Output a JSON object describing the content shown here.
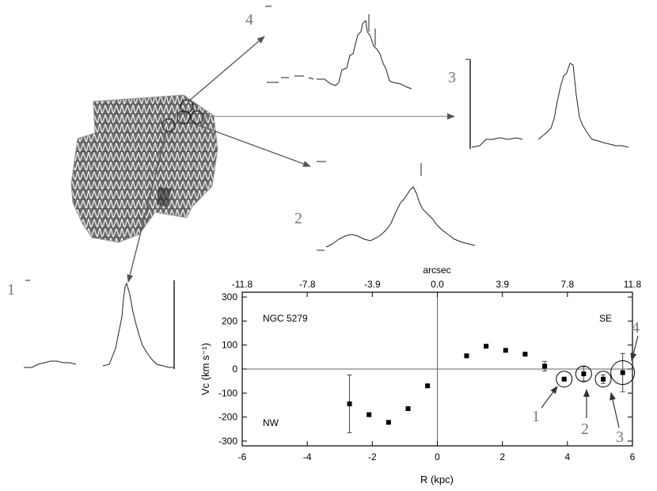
{
  "colors": {
    "background": "#ffffff",
    "ink": "#000000",
    "arrow": "#555555",
    "map_dark": "#3a3a3a",
    "map_light": "#c8c8c8",
    "spectrum_gray": "#888888"
  },
  "figure": {
    "spectra_labels": [
      "1",
      "2",
      "3",
      "4"
    ]
  },
  "chart_data": {
    "type": "scatter",
    "title": "",
    "xlabel": "R (kpc)",
    "ylabel": "Vc (km s⁻¹)",
    "top_axis_label": "arcsec",
    "top_ticks": [
      "-11.8",
      "-7.8",
      "-3.9",
      "0.0",
      "3.9",
      "7.8",
      "11.8"
    ],
    "x_ticks": [
      "-6",
      "-4",
      "-2",
      "0",
      "2",
      "4",
      "6"
    ],
    "y_ticks": [
      "300",
      "200",
      "100",
      "0",
      "-100",
      "-200",
      "-300"
    ],
    "xlim": [
      -6,
      6
    ],
    "ylim": [
      -320,
      320
    ],
    "grid": false,
    "reference_lines": {
      "x": 0,
      "y": 0
    },
    "annotations": {
      "galaxy": "NGC 5279",
      "left": "NW",
      "right": "SE"
    },
    "points": [
      {
        "x": -2.7,
        "y": -145,
        "err": 120
      },
      {
        "x": -2.1,
        "y": -190,
        "err": 0
      },
      {
        "x": -1.5,
        "y": -222,
        "err": 0
      },
      {
        "x": -0.9,
        "y": -165,
        "err": 0
      },
      {
        "x": -0.3,
        "y": -70,
        "err": 0
      },
      {
        "x": 0.9,
        "y": 55,
        "err": 0
      },
      {
        "x": 1.5,
        "y": 95,
        "err": 0
      },
      {
        "x": 2.1,
        "y": 78,
        "err": 0
      },
      {
        "x": 2.7,
        "y": 62,
        "err": 0
      },
      {
        "x": 3.3,
        "y": 12,
        "err": 20
      },
      {
        "x": 3.9,
        "y": -42,
        "err": 0
      },
      {
        "x": 4.5,
        "y": -20,
        "err": 30
      },
      {
        "x": 5.1,
        "y": -42,
        "err": 18
      },
      {
        "x": 5.7,
        "y": -15,
        "err": 80
      }
    ],
    "circled": [
      {
        "label": "1",
        "x": 3.9,
        "y": -42
      },
      {
        "label": "2",
        "x": 4.5,
        "y": -20
      },
      {
        "label": "3",
        "x": 5.1,
        "y": -42
      },
      {
        "label": "4",
        "x": 5.7,
        "y": -15
      }
    ]
  }
}
